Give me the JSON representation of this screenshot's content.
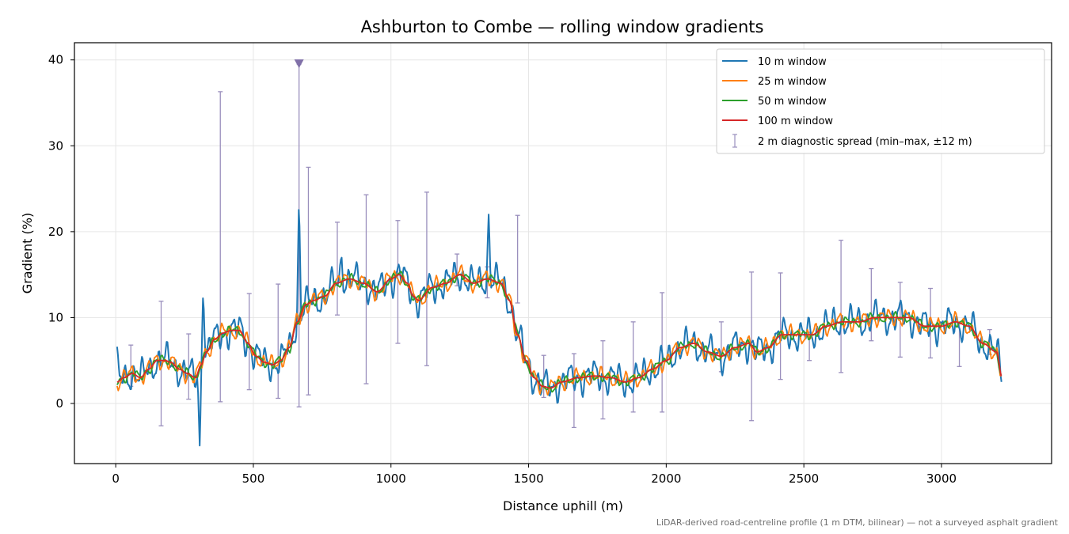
{
  "chart_data": {
    "type": "line",
    "title": "Ashburton to Combe — rolling window gradients",
    "xlabel": "Distance uphill (m)",
    "ylabel": "Gradient (%)",
    "xlim": [
      -150,
      3400
    ],
    "ylim": [
      -7,
      42
    ],
    "xticks": [
      0,
      500,
      1000,
      1500,
      2000,
      2500,
      3000
    ],
    "yticks": [
      0,
      10,
      20,
      30,
      40
    ],
    "grid": true,
    "legend_position": "top-right",
    "footnote": "LiDAR-derived road-centreline profile (1 m DTM, bilinear) — not a surveyed asphalt gradient",
    "colors": {
      "w10": "#1f77b4",
      "w25": "#ff7f0e",
      "w50": "#2ca02c",
      "w100": "#d62728",
      "spread": "#9a8fbd",
      "marker": "#8070a8"
    },
    "trend": {
      "x": [
        5,
        30,
        60,
        90,
        120,
        150,
        180,
        200,
        230,
        260,
        290,
        310,
        330,
        360,
        390,
        420,
        450,
        480,
        510,
        540,
        570,
        600,
        630,
        660,
        690,
        720,
        760,
        800,
        850,
        900,
        950,
        1000,
        1030,
        1060,
        1080,
        1100,
        1150,
        1200,
        1250,
        1300,
        1350,
        1400,
        1430,
        1460,
        1490,
        1520,
        1550,
        1580,
        1620,
        1680,
        1740,
        1800,
        1850,
        1900,
        1950,
        2000,
        2050,
        2100,
        2150,
        2200,
        2250,
        2300,
        2330,
        2370,
        2420,
        2480,
        2530,
        2580,
        2640,
        2700,
        2760,
        2820,
        2880,
        2940,
        3000,
        3050,
        3100,
        3150,
        3200,
        3220
      ],
      "y": [
        2.5,
        3,
        3.5,
        3,
        4,
        5,
        5,
        4.8,
        4,
        3.5,
        3,
        4.5,
        6,
        7.5,
        8.2,
        8.5,
        8.5,
        7,
        5.5,
        4.8,
        4.5,
        5,
        6.5,
        9.5,
        11.5,
        12,
        12.5,
        14,
        14.5,
        14,
        13,
        14.5,
        15,
        14,
        12.5,
        12,
        13.5,
        14,
        15,
        14,
        14.5,
        14,
        12,
        8,
        5,
        3,
        2,
        1.8,
        2.5,
        3,
        3.2,
        3,
        2.5,
        3,
        4,
        5,
        6.5,
        7,
        6,
        5.5,
        6.5,
        7,
        6,
        6.5,
        8,
        8,
        8,
        9,
        9.5,
        9.5,
        10,
        10,
        10,
        9,
        9,
        9.5,
        9,
        7,
        6,
        3
      ]
    },
    "series": [
      {
        "name": "10 m window",
        "key": "w10",
        "noise": 2.4,
        "lag": 0
      },
      {
        "name": "25 m window",
        "key": "w25",
        "noise": 1.3,
        "lag": 0
      },
      {
        "name": "50 m window",
        "key": "w50",
        "noise": 0.7,
        "lag": 0
      },
      {
        "name": "100 m window",
        "key": "w100",
        "noise": 0.0,
        "lag": 0
      }
    ],
    "spikes": [
      {
        "x": 5,
        "y": 6.6
      },
      {
        "x": 305,
        "y": -4.9
      },
      {
        "x": 318,
        "y": 13.6
      },
      {
        "x": 666,
        "y": 24.3
      },
      {
        "x": 820,
        "y": 17.5
      },
      {
        "x": 1355,
        "y": 22
      }
    ],
    "spread_label": "2 m diagnostic spread (min–max, ±12 m)",
    "spread_bars": [
      {
        "x": 55,
        "lo": 2,
        "hi": 6.8
      },
      {
        "x": 165,
        "lo": -2.6,
        "hi": 11.9
      },
      {
        "x": 265,
        "lo": 0.5,
        "hi": 8.1
      },
      {
        "x": 380,
        "lo": 0.2,
        "hi": 36.3
      },
      {
        "x": 485,
        "lo": 1.6,
        "hi": 12.8
      },
      {
        "x": 590,
        "lo": 0.6,
        "hi": 13.9
      },
      {
        "x": 666,
        "lo": -0.4,
        "hi": 39.5
      },
      {
        "x": 700,
        "lo": 1,
        "hi": 27.5
      },
      {
        "x": 805,
        "lo": 10.3,
        "hi": 21.1
      },
      {
        "x": 910,
        "lo": 2.3,
        "hi": 24.3
      },
      {
        "x": 1025,
        "lo": 7,
        "hi": 21.3
      },
      {
        "x": 1130,
        "lo": 4.4,
        "hi": 24.6
      },
      {
        "x": 1240,
        "lo": 13.7,
        "hi": 17.4
      },
      {
        "x": 1350,
        "lo": 12.3,
        "hi": 15.9
      },
      {
        "x": 1460,
        "lo": 11.7,
        "hi": 21.9
      },
      {
        "x": 1555,
        "lo": 0.7,
        "hi": 5.6
      },
      {
        "x": 1665,
        "lo": -2.8,
        "hi": 5.8
      },
      {
        "x": 1770,
        "lo": -1.8,
        "hi": 7.3
      },
      {
        "x": 1880,
        "lo": -1,
        "hi": 9.5
      },
      {
        "x": 1985,
        "lo": -1,
        "hi": 12.9
      },
      {
        "x": 2200,
        "lo": 3.7,
        "hi": 9.5
      },
      {
        "x": 2310,
        "lo": -2,
        "hi": 15.3
      },
      {
        "x": 2415,
        "lo": 2.8,
        "hi": 15.2
      },
      {
        "x": 2520,
        "lo": 5,
        "hi": 8.3
      },
      {
        "x": 2635,
        "lo": 3.6,
        "hi": 19
      },
      {
        "x": 2745,
        "lo": 7.3,
        "hi": 15.7
      },
      {
        "x": 2850,
        "lo": 5.4,
        "hi": 14.1
      },
      {
        "x": 2960,
        "lo": 5.3,
        "hi": 13.4
      },
      {
        "x": 3065,
        "lo": 4.3,
        "hi": 9.3
      },
      {
        "x": 3175,
        "lo": 5.7,
        "hi": 8.6
      }
    ],
    "clipped_marker": {
      "x": 666,
      "y": 39.5
    }
  }
}
